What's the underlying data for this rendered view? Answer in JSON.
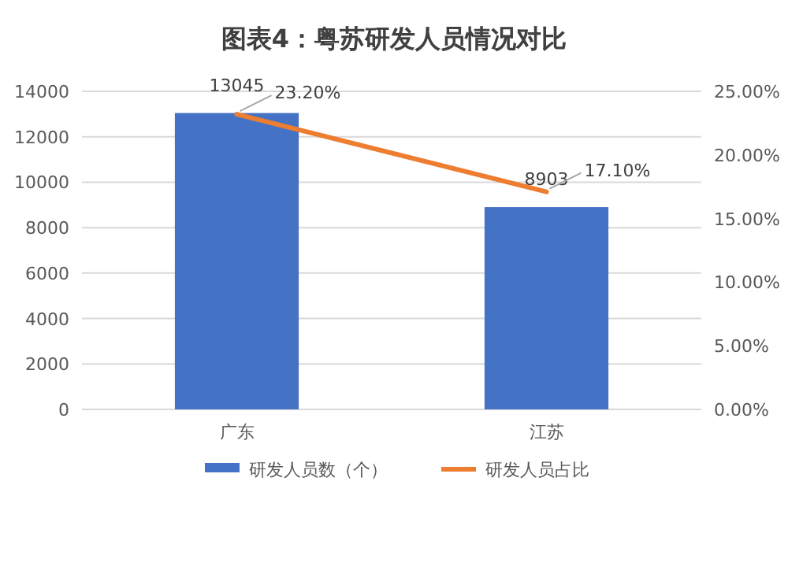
{
  "chart_data": {
    "type": "bar",
    "title": "图表4：粤苏研发人员情况对比",
    "categories": [
      "广东",
      "江苏"
    ],
    "series": [
      {
        "name": "研发人员数（个）",
        "type": "bar",
        "color": "#4472c4",
        "values": [
          13045,
          8903
        ]
      },
      {
        "name": "研发人员占比",
        "type": "line",
        "axis": "y2",
        "color": "#ed7d31",
        "values": [
          23.2,
          17.1
        ],
        "value_labels": [
          "23.20%",
          "17.10%"
        ]
      }
    ],
    "ylim": [
      0,
      14000
    ],
    "yticks": [
      0,
      2000,
      4000,
      6000,
      8000,
      10000,
      12000,
      14000
    ],
    "y2lim": [
      0,
      25
    ],
    "y2ticks": [
      {
        "value": 0,
        "label": "0.00%"
      },
      {
        "value": 5,
        "label": "5.00%"
      },
      {
        "value": 10,
        "label": "10.00%"
      },
      {
        "value": 15,
        "label": "15.00%"
      },
      {
        "value": 20,
        "label": "20.00%"
      },
      {
        "value": 25,
        "label": "25.00%"
      }
    ],
    "grid": "y",
    "legend": "bottom",
    "data_labels": true,
    "marker": "none"
  }
}
